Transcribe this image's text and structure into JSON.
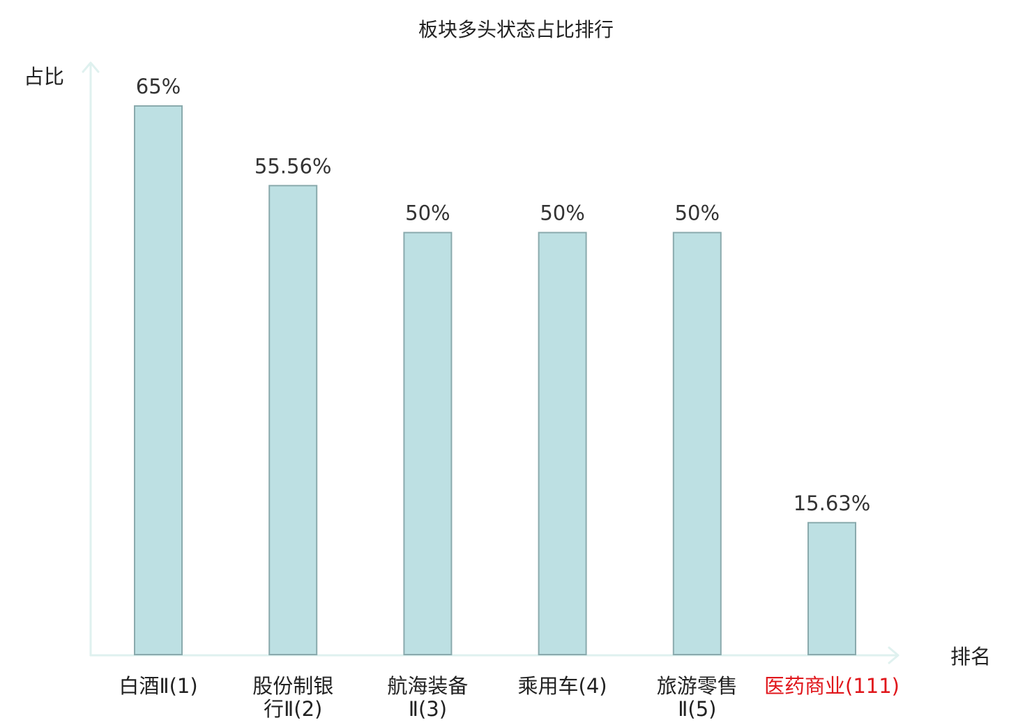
{
  "chart_data": {
    "type": "bar",
    "title": "板块多头状态占比排行",
    "ylabel": "占比",
    "xlabel": "排名",
    "ylim": [
      0,
      70
    ],
    "grid": false,
    "legend": "none",
    "categories": [
      [
        "白酒Ⅱ(1)"
      ],
      [
        "股份制银",
        "行Ⅱ(2)"
      ],
      [
        "航海装备",
        "Ⅱ(3)"
      ],
      [
        "乘用车(4)"
      ],
      [
        "旅游零售",
        "Ⅱ(5)"
      ],
      [
        "医药商业(111)"
      ]
    ],
    "values": [
      65,
      55.56,
      50,
      50,
      50,
      15.63
    ],
    "value_labels": [
      "65%",
      "55.56%",
      "50%",
      "50%",
      "50%",
      "15.63%"
    ],
    "highlight_index": 5
  },
  "colors": {
    "bar_fill": "#bde0e3",
    "bar_stroke": "#8aaaad",
    "axis": "#dff1ef",
    "text": "#222222",
    "highlight_text": "#e0161b"
  }
}
